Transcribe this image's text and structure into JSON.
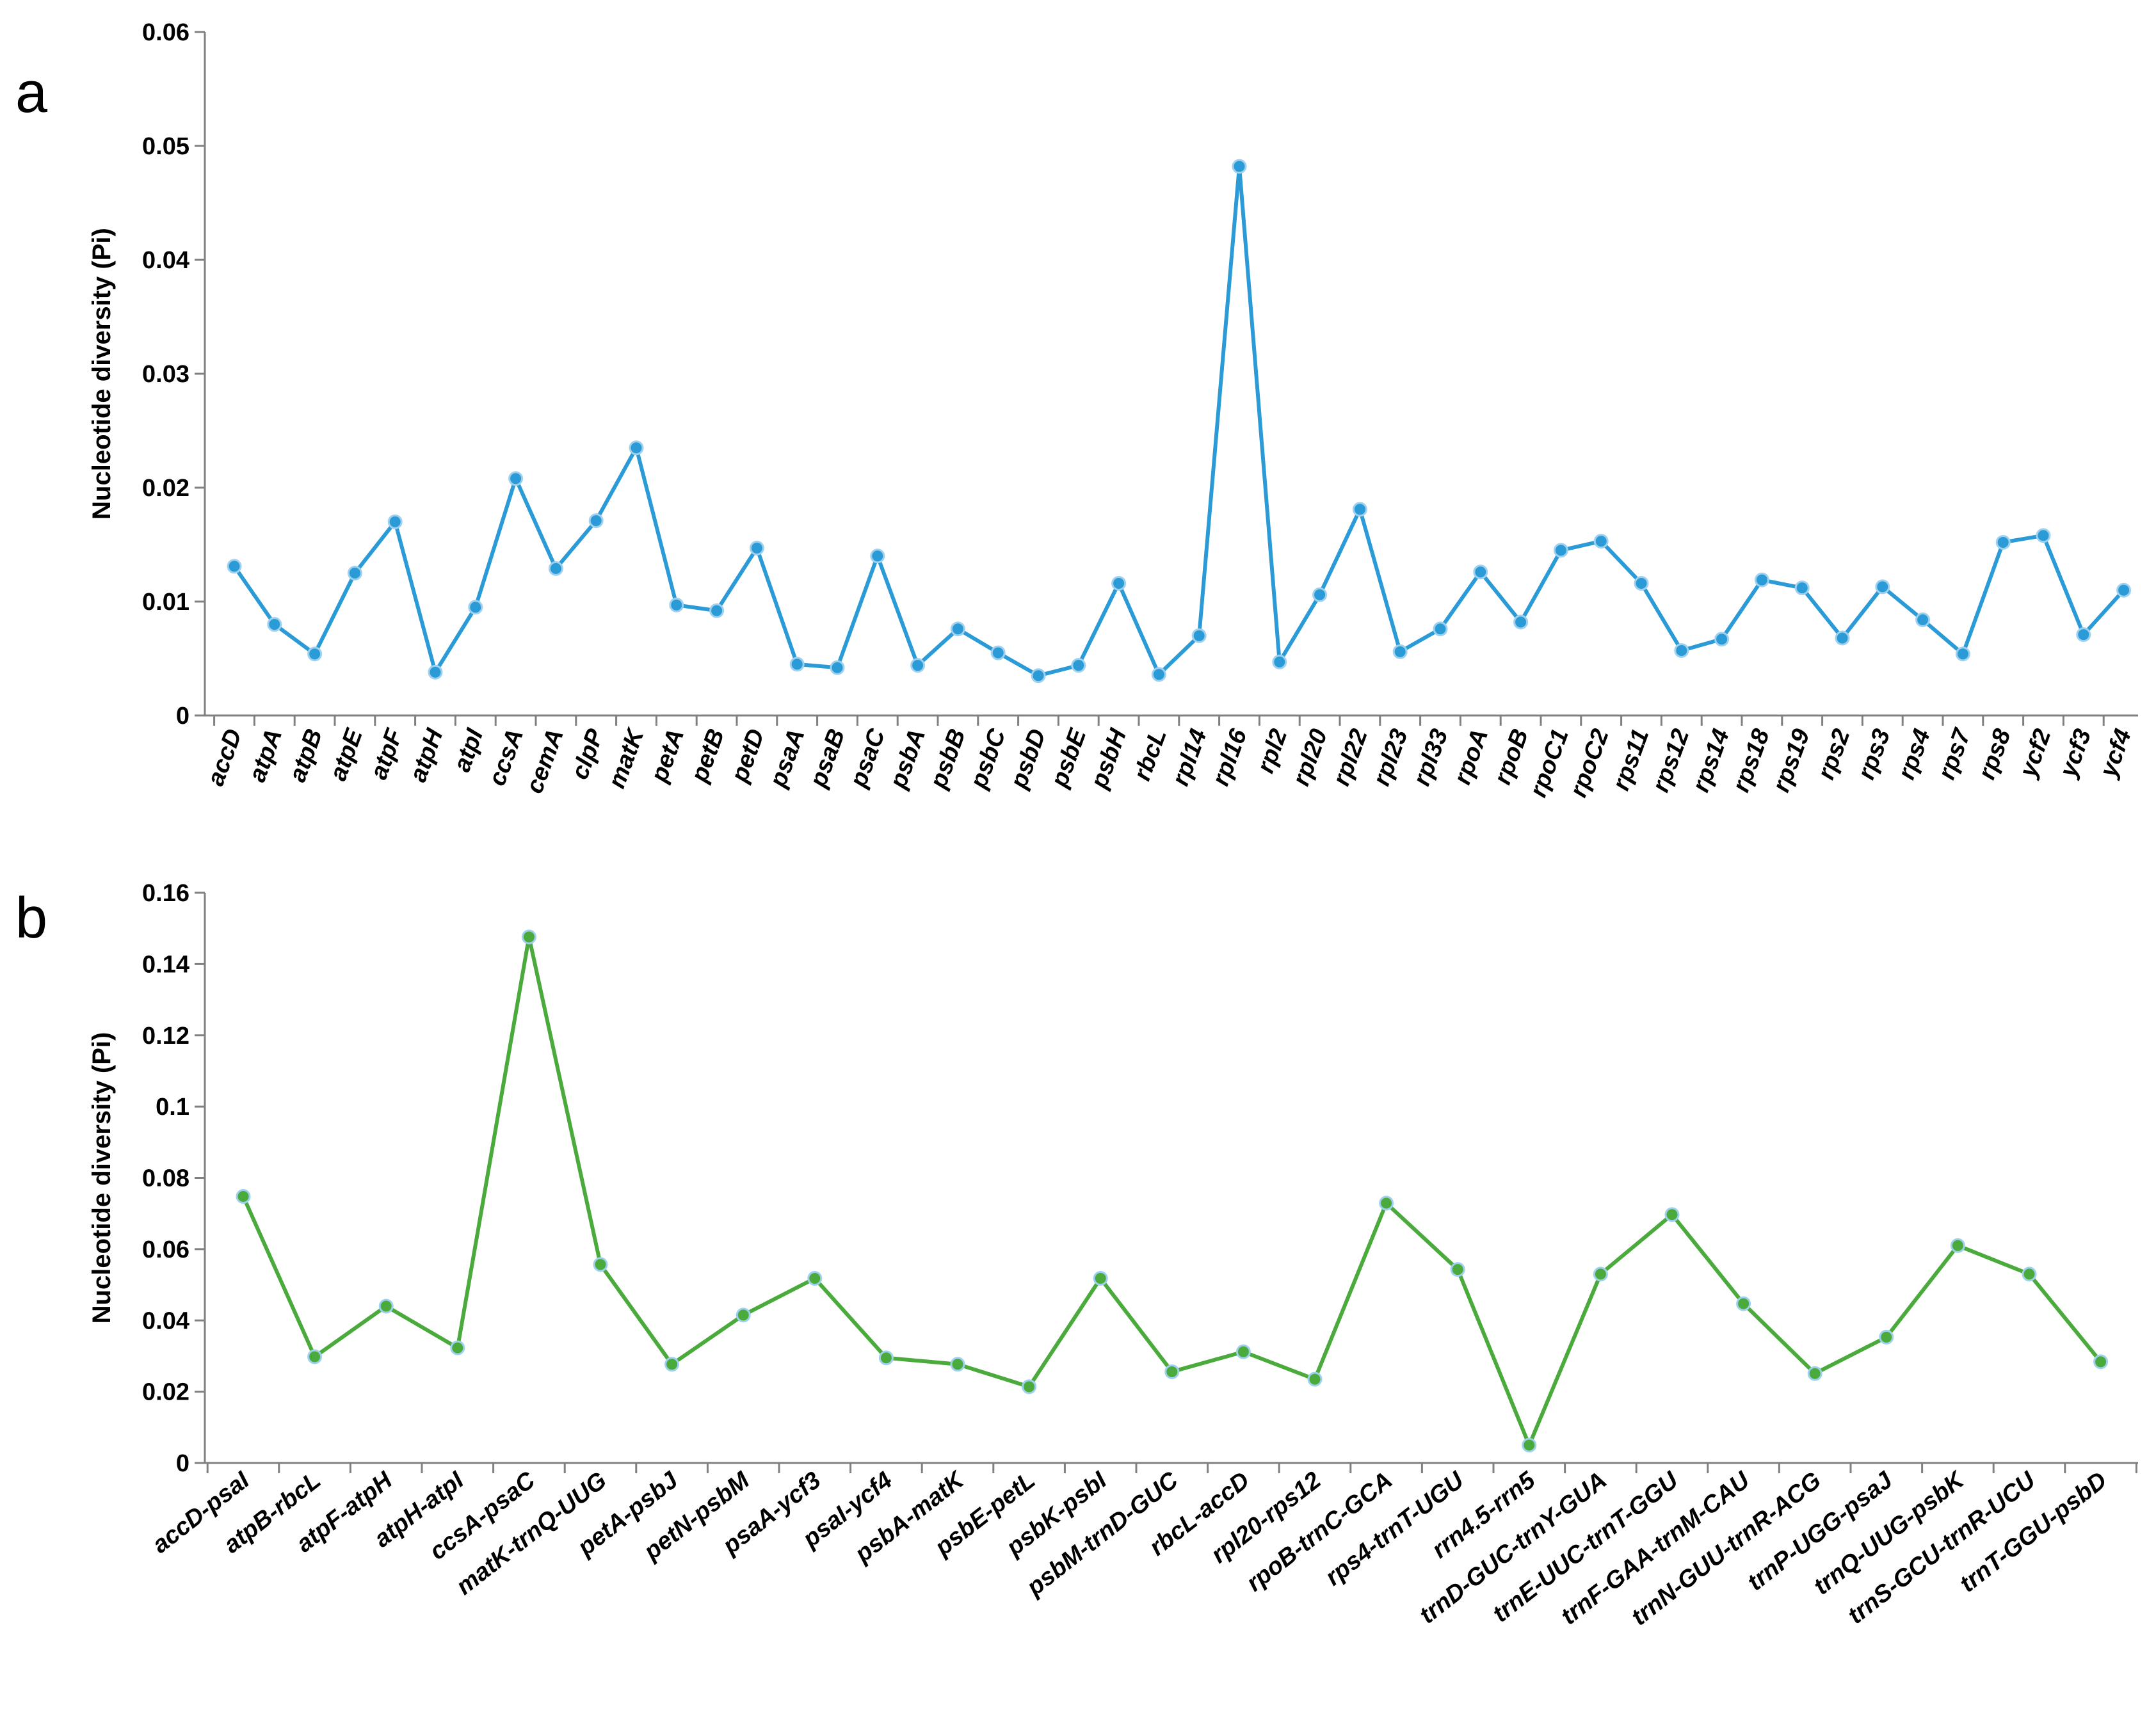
{
  "chart_data": [
    {
      "type": "line",
      "panel_label": "a",
      "ylabel": "Nucleotide diversity (Pi)",
      "ylim": [
        0,
        0.06
      ],
      "yticks": [
        "0",
        "0.01",
        "0.02",
        "0.03",
        "0.04",
        "0.05",
        "0.06"
      ],
      "color": "#2b9bd8",
      "categories": [
        "accD",
        "atpA",
        "atpB",
        "atpE",
        "atpF",
        "atpH",
        "atpI",
        "ccsA",
        "cemA",
        "clpP",
        "matK",
        "petA",
        "petB",
        "petD",
        "psaA",
        "psaB",
        "psaC",
        "psbA",
        "psbB",
        "psbC",
        "psbD",
        "psbE",
        "psbH",
        "rbcL",
        "rpl14",
        "rpl16",
        "rpl2",
        "rpl20",
        "rpl22",
        "rpl23",
        "rpl33",
        "rpoA",
        "rpoB",
        "rpoC1",
        "rpoC2",
        "rps11",
        "rps12",
        "rps14",
        "rps18",
        "rps19",
        "rps2",
        "rps3",
        "rps4",
        "rps7",
        "rps8",
        "ycf2",
        "ycf3",
        "ycf4"
      ],
      "series": [
        {
          "values": [
            0.0131,
            0.008,
            0.0054,
            0.0125,
            0.017,
            0.0038,
            0.0095,
            0.0208,
            0.0129,
            0.0171,
            0.0235,
            0.0097,
            0.0092,
            0.0147,
            0.0045,
            0.0042,
            0.014,
            0.0044,
            0.0076,
            0.0055,
            0.0035,
            0.0044,
            0.0116,
            0.0036,
            0.007,
            0.0482,
            0.0047,
            0.0106,
            0.0181,
            0.0056,
            0.0076,
            0.0126,
            0.0082,
            0.0145,
            0.0153,
            0.0116,
            0.0057,
            0.0067,
            0.0119,
            0.0112,
            0.0068,
            0.0113,
            0.0084,
            0.0054,
            0.0152,
            0.0158,
            0.0071,
            0.011
          ]
        }
      ]
    },
    {
      "type": "line",
      "panel_label": "b",
      "ylabel": "Nucleotide diversity (Pi)",
      "ylim": [
        0,
        0.16
      ],
      "yticks": [
        "0",
        "0.02",
        "0.04",
        "0.06",
        "0.08",
        "0.1",
        "0.12",
        "0.14",
        "0.16"
      ],
      "color": "#4aaa3c",
      "categories": [
        "accD-psaI",
        "atpB-rbcL",
        "atpF-atpH",
        "atpH-atpI",
        "ccsA-psaC",
        "matK-trnQ-UUG",
        "petA-psbJ",
        "petN-psbM",
        "psaA-ycf3",
        "psaI-ycf4",
        "psbA-matK",
        "psbE-petL",
        "psbK-psbI",
        "psbM-trnD-GUC",
        "rbcL-accD",
        "rpl20-rps12",
        "rpoB-trnC-GCA",
        "rps4-trnT-UGU",
        "rrn4.5-rrn5",
        "trnD-GUC-trnY-GUA",
        "trnE-UUC-trnT-GGU",
        "trnF-GAA-trnM-CAU",
        "trnN-GUU-trnR-ACG",
        "trnP-UGG-psaJ",
        "trnQ-UUG-psbK",
        "trnS-GCU-trnR-UCU",
        "trnT-GGU-psbD"
      ],
      "series": [
        {
          "values": [
            0.0748,
            0.0298,
            0.044,
            0.0323,
            0.1476,
            0.0557,
            0.0277,
            0.0415,
            0.0518,
            0.0295,
            0.0277,
            0.0214,
            0.0518,
            0.0256,
            0.0312,
            0.0235,
            0.0729,
            0.0543,
            0.005,
            0.053,
            0.0697,
            0.0447,
            0.0251,
            0.0353,
            0.061,
            0.053,
            0.0284
          ]
        }
      ]
    }
  ]
}
